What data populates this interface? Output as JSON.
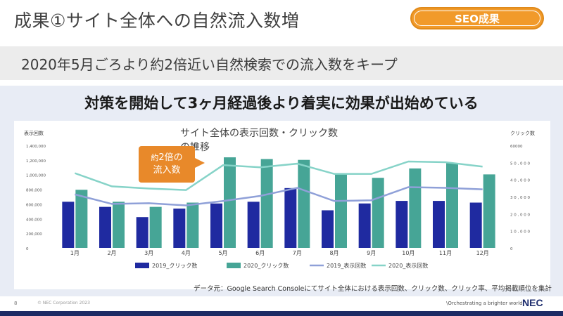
{
  "header": {
    "title": "成果①サイト全体への自然流入数増",
    "badge": "SEO成果"
  },
  "subtitle": "2020年5月ごろより約2倍近い自然検索での流入数をキープ",
  "headline": "対策を開始して3ヶ月経過後より着実に効果が出始めている",
  "callout": {
    "line1a": "約",
    "line1b": "2倍の",
    "line2": "流入数"
  },
  "source_note": "データ元：Google Search Consoleにてサイト全体における表示回数、クリック数、クリック率、平均掲載順位を集計",
  "footer": {
    "page": "8",
    "copyright": "© NEC Corporation 2023",
    "tagline": "\\Orchestrating a brighter world",
    "logo": "NEC"
  },
  "colors": {
    "clicks_2019": "#1f2aa0",
    "clicks_2020": "#46a596",
    "impr_2019": "#8fa0d8",
    "impr_2020": "#86d3c8",
    "accent_orange": "#e8892a"
  },
  "chart_data": {
    "type": "bar",
    "title": "サイト全体の表示回数・クリック数の推移",
    "categories": [
      "1月",
      "2月",
      "3月",
      "4月",
      "5月",
      "6月",
      "7月",
      "8月",
      "9月",
      "10月",
      "11月",
      "12月"
    ],
    "y_left": {
      "label": "表示回数",
      "ticks": [
        "1,400,000",
        "1,200,000",
        "1,000,000",
        "800,000",
        "600,000",
        "400,000",
        "200,000",
        "0"
      ],
      "range": [
        0,
        1400000
      ]
    },
    "y_right": {
      "label": "クリック数",
      "ticks": [
        "60000",
        "5 0 , 0 0 0",
        "4 0 , 0 0 0",
        "3 0 , 0 0 0",
        "2 0 , 0 0 0",
        "1 0 , 0 0 0",
        "0"
      ],
      "range": [
        0,
        60000
      ]
    },
    "legend_placement": "bottom",
    "series": [
      {
        "name": "2019_クリック数",
        "kind": "bar",
        "axis": "right",
        "color": "#1f2aa0",
        "values": [
          27000,
          24000,
          18000,
          23000,
          26000,
          27000,
          35000,
          22000,
          26000,
          27500,
          27500,
          26500
        ]
      },
      {
        "name": "2020_クリック数",
        "kind": "bar",
        "axis": "right",
        "color": "#46a596",
        "values": [
          34000,
          27000,
          24000,
          26500,
          53000,
          52000,
          51500,
          43000,
          41000,
          46500,
          49500,
          43000
        ]
      },
      {
        "name": "2019_表示回数",
        "kind": "line",
        "axis": "left",
        "color": "#8fa0d8",
        "values": [
          730000,
          600000,
          610000,
          580000,
          640000,
          710000,
          820000,
          640000,
          650000,
          830000,
          820000,
          800000
        ]
      },
      {
        "name": "2020_表示回数",
        "kind": "line",
        "axis": "left",
        "color": "#86d3c8",
        "values": [
          1020000,
          840000,
          810000,
          790000,
          1130000,
          1100000,
          1150000,
          1010000,
          1010000,
          1180000,
          1170000,
          1110000
        ]
      }
    ]
  }
}
